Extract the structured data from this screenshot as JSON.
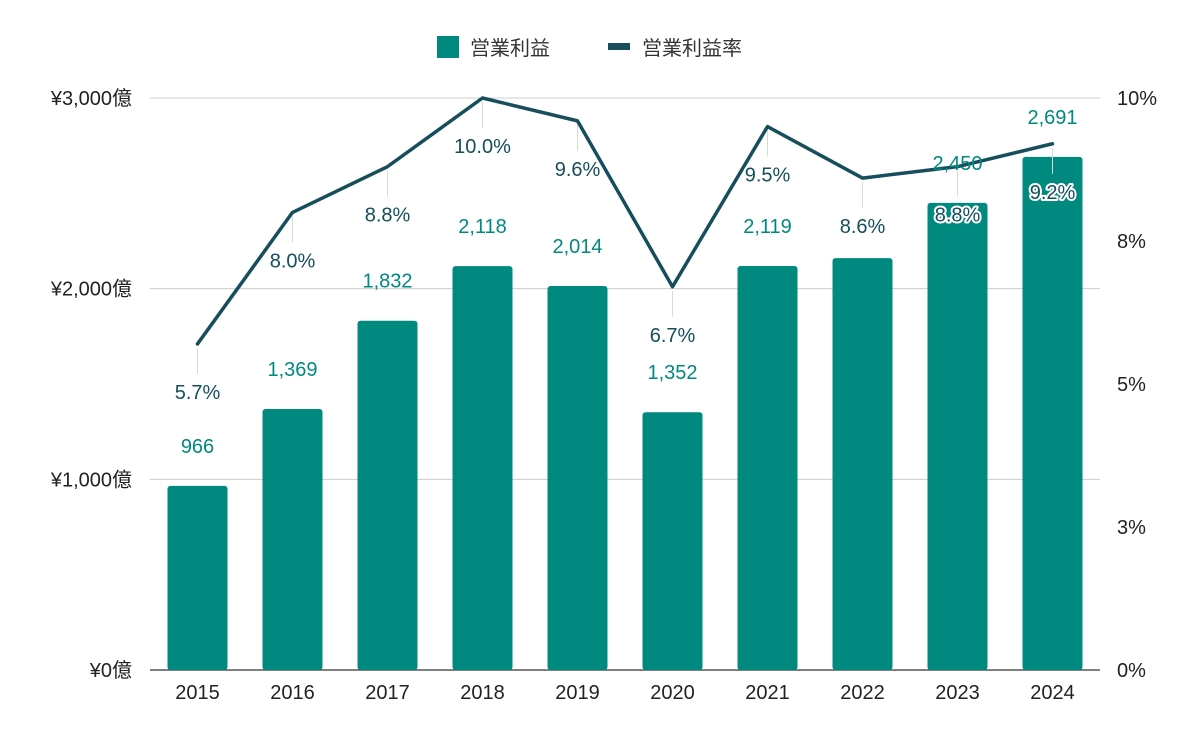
{
  "colors": {
    "bar": "#00897f",
    "line": "#164e5c",
    "grid": "#cccccc",
    "axis": "#555555",
    "bar_label": "#00897f",
    "rate_label": "#164e5c"
  },
  "legend": {
    "placement": "top-center",
    "items": [
      {
        "name": "営業利益",
        "marker": "square",
        "color": "#00897f"
      },
      {
        "name": "営業利益率",
        "marker": "line",
        "color": "#164e5c"
      }
    ]
  },
  "chart_data": {
    "type": "bar",
    "categories": [
      "2015",
      "2016",
      "2017",
      "2018",
      "2019",
      "2020",
      "2021",
      "2022",
      "2023",
      "2024"
    ],
    "series": [
      {
        "name": "営業利益",
        "type": "bar",
        "axis": "left",
        "values": [
          966,
          1369,
          1832,
          2118,
          2014,
          1352,
          2119,
          2160,
          2450,
          2691
        ],
        "labels": [
          "966",
          "1,369",
          "1,832",
          "2,118",
          "2,014",
          "1,352",
          "2,119",
          "",
          "2,450",
          "2,691"
        ]
      },
      {
        "name": "営業利益率",
        "type": "line",
        "axis": "right",
        "values": [
          5.7,
          8.0,
          8.8,
          10.0,
          9.6,
          6.7,
          9.5,
          8.6,
          8.8,
          9.2
        ],
        "labels": [
          "5.7%",
          "8.0%",
          "8.8%",
          "10.0%",
          "9.6%",
          "6.7%",
          "9.5%",
          "8.6%",
          "8.8%",
          "9.2%"
        ]
      }
    ],
    "y_left": {
      "ylim": [
        0,
        3000
      ],
      "ticks": [
        0,
        1000,
        2000,
        3000
      ],
      "tick_labels": [
        "¥0億",
        "¥1,000億",
        "¥2,000億",
        "¥3,000億"
      ]
    },
    "y_right": {
      "ylim": [
        0,
        10
      ],
      "ticks": [
        0,
        2.5,
        5,
        7.5,
        10
      ],
      "tick_labels": [
        "0%",
        "3%",
        "5%",
        "8%",
        "10%"
      ]
    },
    "grid": true
  }
}
